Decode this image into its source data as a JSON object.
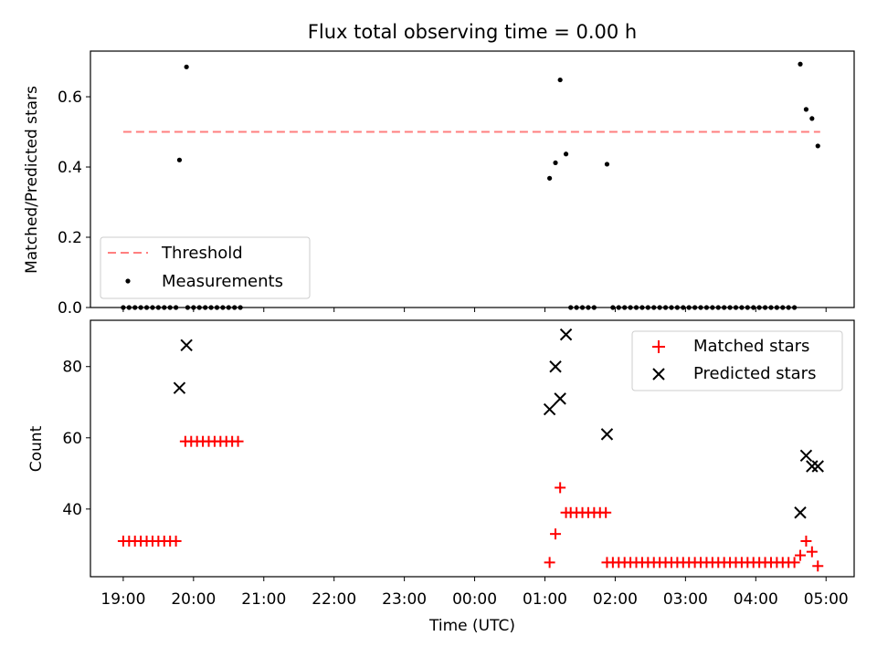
{
  "title": "Flux total observing time = 0.00 h",
  "chart_data": [
    {
      "type": "scatter",
      "panel": "top",
      "ylabel": "Matched/Predicted stars",
      "ylim": [
        0,
        0.73
      ],
      "yticks": [
        0.0,
        0.2,
        0.4,
        0.6
      ],
      "ytick_labels": [
        "0.0",
        "0.2",
        "0.4",
        "0.6"
      ],
      "xlim": [
        "18:32",
        "05:24"
      ],
      "legend": {
        "placement": "lower-left"
      },
      "threshold": {
        "name": "Threshold",
        "value": 0.5,
        "x": [
          "19:00",
          "04:55"
        ],
        "color": "#ff7f7f"
      },
      "measurements": {
        "name": "Measurements",
        "color": "#000000",
        "points": [
          [
            "19:00",
            0
          ],
          [
            "19:05",
            0
          ],
          [
            "19:10",
            0
          ],
          [
            "19:15",
            0
          ],
          [
            "19:20",
            0
          ],
          [
            "19:25",
            0
          ],
          [
            "19:30",
            0
          ],
          [
            "19:35",
            0
          ],
          [
            "19:40",
            0
          ],
          [
            "19:45",
            0
          ],
          [
            "19:48",
            0.42
          ],
          [
            "19:54",
            0.685
          ],
          [
            "19:55",
            0
          ],
          [
            "20:00",
            0
          ],
          [
            "20:05",
            0
          ],
          [
            "20:10",
            0
          ],
          [
            "20:15",
            0
          ],
          [
            "20:20",
            0
          ],
          [
            "20:25",
            0
          ],
          [
            "20:30",
            0
          ],
          [
            "20:35",
            0
          ],
          [
            "20:40",
            0
          ],
          [
            "01:04",
            0.368
          ],
          [
            "01:09",
            0.412
          ],
          [
            "01:13",
            0.648
          ],
          [
            "01:18",
            0.437
          ],
          [
            "01:53",
            0.408
          ],
          [
            "01:22",
            0
          ],
          [
            "01:27",
            0
          ],
          [
            "01:32",
            0
          ],
          [
            "01:37",
            0
          ],
          [
            "01:42",
            0
          ],
          [
            "01:58",
            0
          ],
          [
            "02:03",
            0
          ],
          [
            "02:08",
            0
          ],
          [
            "02:13",
            0
          ],
          [
            "02:18",
            0
          ],
          [
            "02:23",
            0
          ],
          [
            "02:28",
            0
          ],
          [
            "02:33",
            0
          ],
          [
            "02:38",
            0
          ],
          [
            "02:43",
            0
          ],
          [
            "02:48",
            0
          ],
          [
            "02:53",
            0
          ],
          [
            "02:58",
            0
          ],
          [
            "03:03",
            0
          ],
          [
            "03:08",
            0
          ],
          [
            "03:13",
            0
          ],
          [
            "03:18",
            0
          ],
          [
            "03:23",
            0
          ],
          [
            "03:28",
            0
          ],
          [
            "03:33",
            0
          ],
          [
            "03:38",
            0
          ],
          [
            "03:43",
            0
          ],
          [
            "03:48",
            0
          ],
          [
            "03:53",
            0
          ],
          [
            "03:58",
            0
          ],
          [
            "04:03",
            0
          ],
          [
            "04:08",
            0
          ],
          [
            "04:13",
            0
          ],
          [
            "04:18",
            0
          ],
          [
            "04:23",
            0
          ],
          [
            "04:28",
            0
          ],
          [
            "04:33",
            0
          ],
          [
            "04:38",
            0.693
          ],
          [
            "04:43",
            0.564
          ],
          [
            "04:48",
            0.538
          ],
          [
            "04:53",
            0.46
          ]
        ]
      }
    },
    {
      "type": "scatter",
      "panel": "bottom",
      "xlabel": "Time (UTC)",
      "ylabel": "Count",
      "ylim": [
        21,
        93
      ],
      "yticks": [
        40,
        60,
        80
      ],
      "ytick_labels": [
        "40",
        "60",
        "80"
      ],
      "xlim": [
        "18:32",
        "05:24"
      ],
      "xticks": [
        "19:00",
        "20:00",
        "21:00",
        "22:00",
        "23:00",
        "00:00",
        "01:00",
        "02:00",
        "03:00",
        "04:00",
        "05:00"
      ],
      "xtick_labels": [
        "19:00",
        "20:00",
        "21:00",
        "22:00",
        "23:00",
        "00:00",
        "01:00",
        "02:00",
        "03:00",
        "04:00",
        "05:00"
      ],
      "legend": {
        "placement": "upper-right"
      },
      "series": [
        {
          "name": "Matched stars",
          "marker": "plus",
          "color": "#ff0000",
          "points": [
            [
              "19:00",
              31
            ],
            [
              "19:05",
              31
            ],
            [
              "19:10",
              31
            ],
            [
              "19:15",
              31
            ],
            [
              "19:20",
              31
            ],
            [
              "19:25",
              31
            ],
            [
              "19:30",
              31
            ],
            [
              "19:35",
              31
            ],
            [
              "19:40",
              31
            ],
            [
              "19:45",
              31
            ],
            [
              "19:53",
              59
            ],
            [
              "19:58",
              59
            ],
            [
              "20:03",
              59
            ],
            [
              "20:08",
              59
            ],
            [
              "20:13",
              59
            ],
            [
              "20:18",
              59
            ],
            [
              "20:23",
              59
            ],
            [
              "20:28",
              59
            ],
            [
              "20:33",
              59
            ],
            [
              "20:38",
              59
            ],
            [
              "01:04",
              25
            ],
            [
              "01:09",
              33
            ],
            [
              "01:13",
              46
            ],
            [
              "01:18",
              39
            ],
            [
              "01:22",
              39
            ],
            [
              "01:27",
              39
            ],
            [
              "01:32",
              39
            ],
            [
              "01:37",
              39
            ],
            [
              "01:42",
              39
            ],
            [
              "01:47",
              39
            ],
            [
              "01:52",
              39
            ],
            [
              "01:53",
              25
            ],
            [
              "01:58",
              25
            ],
            [
              "02:03",
              25
            ],
            [
              "02:08",
              25
            ],
            [
              "02:13",
              25
            ],
            [
              "02:18",
              25
            ],
            [
              "02:23",
              25
            ],
            [
              "02:28",
              25
            ],
            [
              "02:33",
              25
            ],
            [
              "02:38",
              25
            ],
            [
              "02:43",
              25
            ],
            [
              "02:48",
              25
            ],
            [
              "02:53",
              25
            ],
            [
              "02:58",
              25
            ],
            [
              "03:03",
              25
            ],
            [
              "03:08",
              25
            ],
            [
              "03:13",
              25
            ],
            [
              "03:18",
              25
            ],
            [
              "03:23",
              25
            ],
            [
              "03:28",
              25
            ],
            [
              "03:33",
              25
            ],
            [
              "03:38",
              25
            ],
            [
              "03:43",
              25
            ],
            [
              "03:48",
              25
            ],
            [
              "03:53",
              25
            ],
            [
              "03:58",
              25
            ],
            [
              "04:03",
              25
            ],
            [
              "04:08",
              25
            ],
            [
              "04:13",
              25
            ],
            [
              "04:18",
              25
            ],
            [
              "04:23",
              25
            ],
            [
              "04:28",
              25
            ],
            [
              "04:33",
              25
            ],
            [
              "04:38",
              27
            ],
            [
              "04:43",
              31
            ],
            [
              "04:48",
              28
            ],
            [
              "04:53",
              24
            ]
          ]
        },
        {
          "name": "Predicted stars",
          "marker": "x",
          "color": "#000000",
          "points": [
            [
              "19:48",
              74
            ],
            [
              "19:54",
              86
            ],
            [
              "01:04",
              68
            ],
            [
              "01:09",
              80
            ],
            [
              "01:13",
              71
            ],
            [
              "01:18",
              89
            ],
            [
              "01:53",
              61
            ],
            [
              "04:38",
              39
            ],
            [
              "04:43",
              55
            ],
            [
              "04:48",
              52
            ],
            [
              "04:53",
              52
            ]
          ]
        }
      ]
    }
  ]
}
